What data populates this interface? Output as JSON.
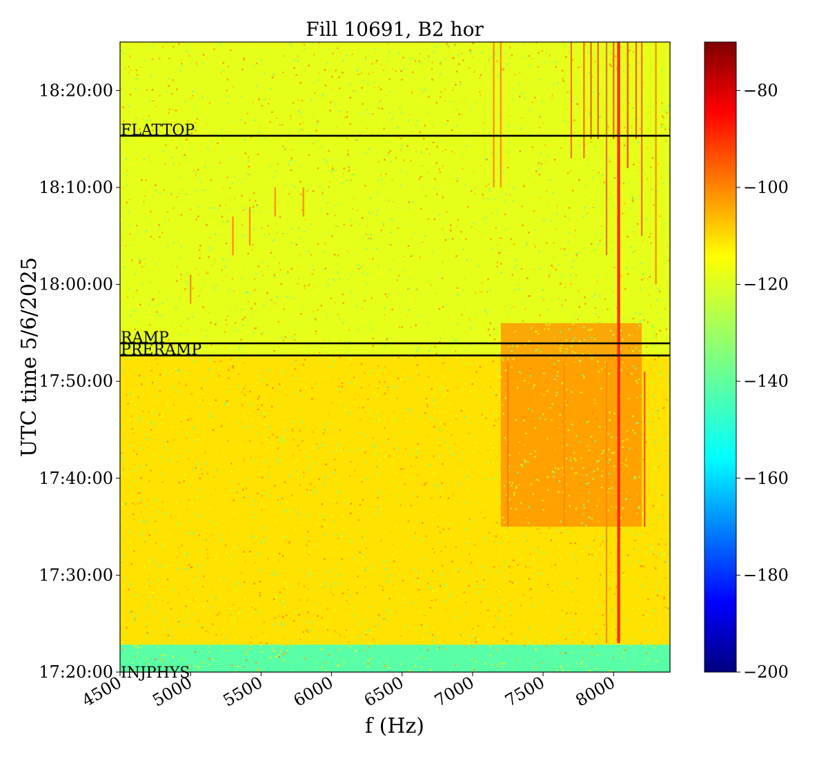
{
  "chart_data": {
    "type": "heatmap",
    "title": "Fill 10691, B2 hor",
    "xlabel": "f (Hz)",
    "ylabel": "UTC time 5/6/2025",
    "xlim": [
      4500,
      8400
    ],
    "x_ticks": [
      4500,
      5000,
      5500,
      6000,
      6500,
      7000,
      7500,
      8000
    ],
    "x_tick_labels": [
      "4500",
      "5000",
      "5500",
      "6000",
      "6500",
      "7000",
      "7500",
      "8000"
    ],
    "ylim": [
      "17:20:00",
      "18:25:00"
    ],
    "y_ticks": [
      "17:20:00",
      "17:30:00",
      "17:40:00",
      "17:50:00",
      "18:00:00",
      "18:10:00",
      "18:20:00"
    ],
    "colorbar": {
      "colormap": "jet",
      "range": [
        -200,
        -70
      ],
      "ticks": [
        -200,
        -180,
        -160,
        -140,
        -120,
        -100,
        -80
      ],
      "tick_labels": [
        "−200",
        "−180",
        "−160",
        "−140",
        "−120",
        "−100",
        "−80"
      ]
    },
    "background_level": -120,
    "regions": [
      {
        "time_start": "17:20:00",
        "time_end": "17:22:50",
        "level": -140
      },
      {
        "time_start": "17:22:50",
        "time_end": "17:52:40",
        "level": -115
      },
      {
        "time_start": "17:52:40",
        "time_end": "18:25:00",
        "level": -122
      }
    ],
    "hot_regions": [
      {
        "f_start": 7200,
        "f_end": 8200,
        "time_start": "17:35:00",
        "time_end": "17:56:00",
        "level": -104
      }
    ],
    "vertical_lines": [
      {
        "f": 8040,
        "time_start": "17:23:00",
        "time_end": "18:25:00",
        "level": -88
      },
      {
        "f": 8030,
        "time_start": "17:23:00",
        "time_end": "18:25:00",
        "level": -95
      },
      {
        "f": 8220,
        "time_start": "17:35:00",
        "time_end": "17:51:00",
        "level": -96
      },
      {
        "f": 7250,
        "time_start": "17:35:00",
        "time_end": "17:52:00",
        "level": -102
      },
      {
        "f": 7650,
        "time_start": "17:35:00",
        "time_end": "17:52:00",
        "level": -104
      },
      {
        "f": 7950,
        "time_start": "17:23:00",
        "time_end": "17:52:00",
        "level": -104
      },
      {
        "f": 7150,
        "time_start": "18:10:00",
        "time_end": "18:25:00",
        "level": -104
      },
      {
        "f": 7200,
        "time_start": "18:10:00",
        "time_end": "18:25:00",
        "level": -104
      },
      {
        "f": 7700,
        "time_start": "18:13:00",
        "time_end": "18:25:00",
        "level": -100
      },
      {
        "f": 7790,
        "time_start": "18:13:00",
        "time_end": "18:25:00",
        "level": -100
      },
      {
        "f": 7840,
        "time_start": "18:15:00",
        "time_end": "18:25:00",
        "level": -98
      },
      {
        "f": 7890,
        "time_start": "18:15:00",
        "time_end": "18:25:00",
        "level": -98
      },
      {
        "f": 7950,
        "time_start": "18:03:00",
        "time_end": "18:25:00",
        "level": -100
      },
      {
        "f": 8000,
        "time_start": "18:15:00",
        "time_end": "18:25:00",
        "level": -98
      },
      {
        "f": 8100,
        "time_start": "18:12:00",
        "time_end": "18:25:00",
        "level": -95
      },
      {
        "f": 8160,
        "time_start": "18:15:00",
        "time_end": "18:25:00",
        "level": -98
      },
      {
        "f": 8200,
        "time_start": "18:05:00",
        "time_end": "18:25:00",
        "level": -100
      },
      {
        "f": 8300,
        "time_start": "18:00:00",
        "time_end": "18:25:00",
        "level": -104
      },
      {
        "f": 5300,
        "time_start": "18:03:00",
        "time_end": "18:07:00",
        "level": -104
      },
      {
        "f": 5420,
        "time_start": "18:04:00",
        "time_end": "18:08:00",
        "level": -104
      },
      {
        "f": 5600,
        "time_start": "18:07:00",
        "time_end": "18:10:00",
        "level": -104
      },
      {
        "f": 5800,
        "time_start": "18:07:00",
        "time_end": "18:10:00",
        "level": -104
      },
      {
        "f": 5000,
        "time_start": "17:58:00",
        "time_end": "18:01:00",
        "level": -104
      }
    ],
    "markers": [
      {
        "label": "FLATTOP",
        "time": "18:15:20"
      },
      {
        "label": "RAMP",
        "time": "17:53:55"
      },
      {
        "label": "PRERAMP",
        "time": "17:52:40"
      },
      {
        "label": "INJPHYS",
        "time": "17:20:00"
      }
    ]
  }
}
